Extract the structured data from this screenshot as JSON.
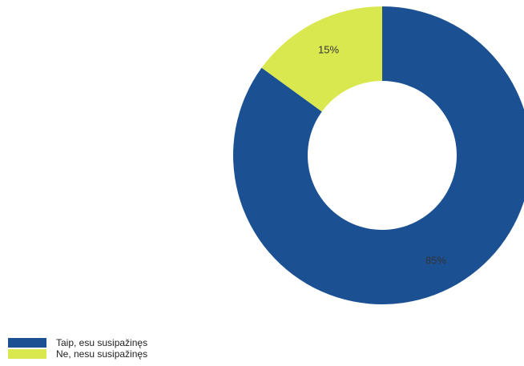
{
  "chart_data": {
    "type": "pie",
    "donut": true,
    "start_angle_deg": 0,
    "direction": "clockwise",
    "legend_position": "bottom-left",
    "slices": [
      {
        "label": "Taip, esu susipažinęs",
        "value": 85,
        "value_label": "85%",
        "color": "#1b5193"
      },
      {
        "label": "Ne, nesu susipažinęs",
        "value": 15,
        "value_label": "15%",
        "color": "#d9e84e"
      }
    ]
  },
  "legend": {
    "items": [
      {
        "label": "Taip, esu susipažinęs",
        "color": "#1b5193"
      },
      {
        "label": "Ne, nesu susipažinęs",
        "color": "#d9e84e"
      }
    ]
  }
}
